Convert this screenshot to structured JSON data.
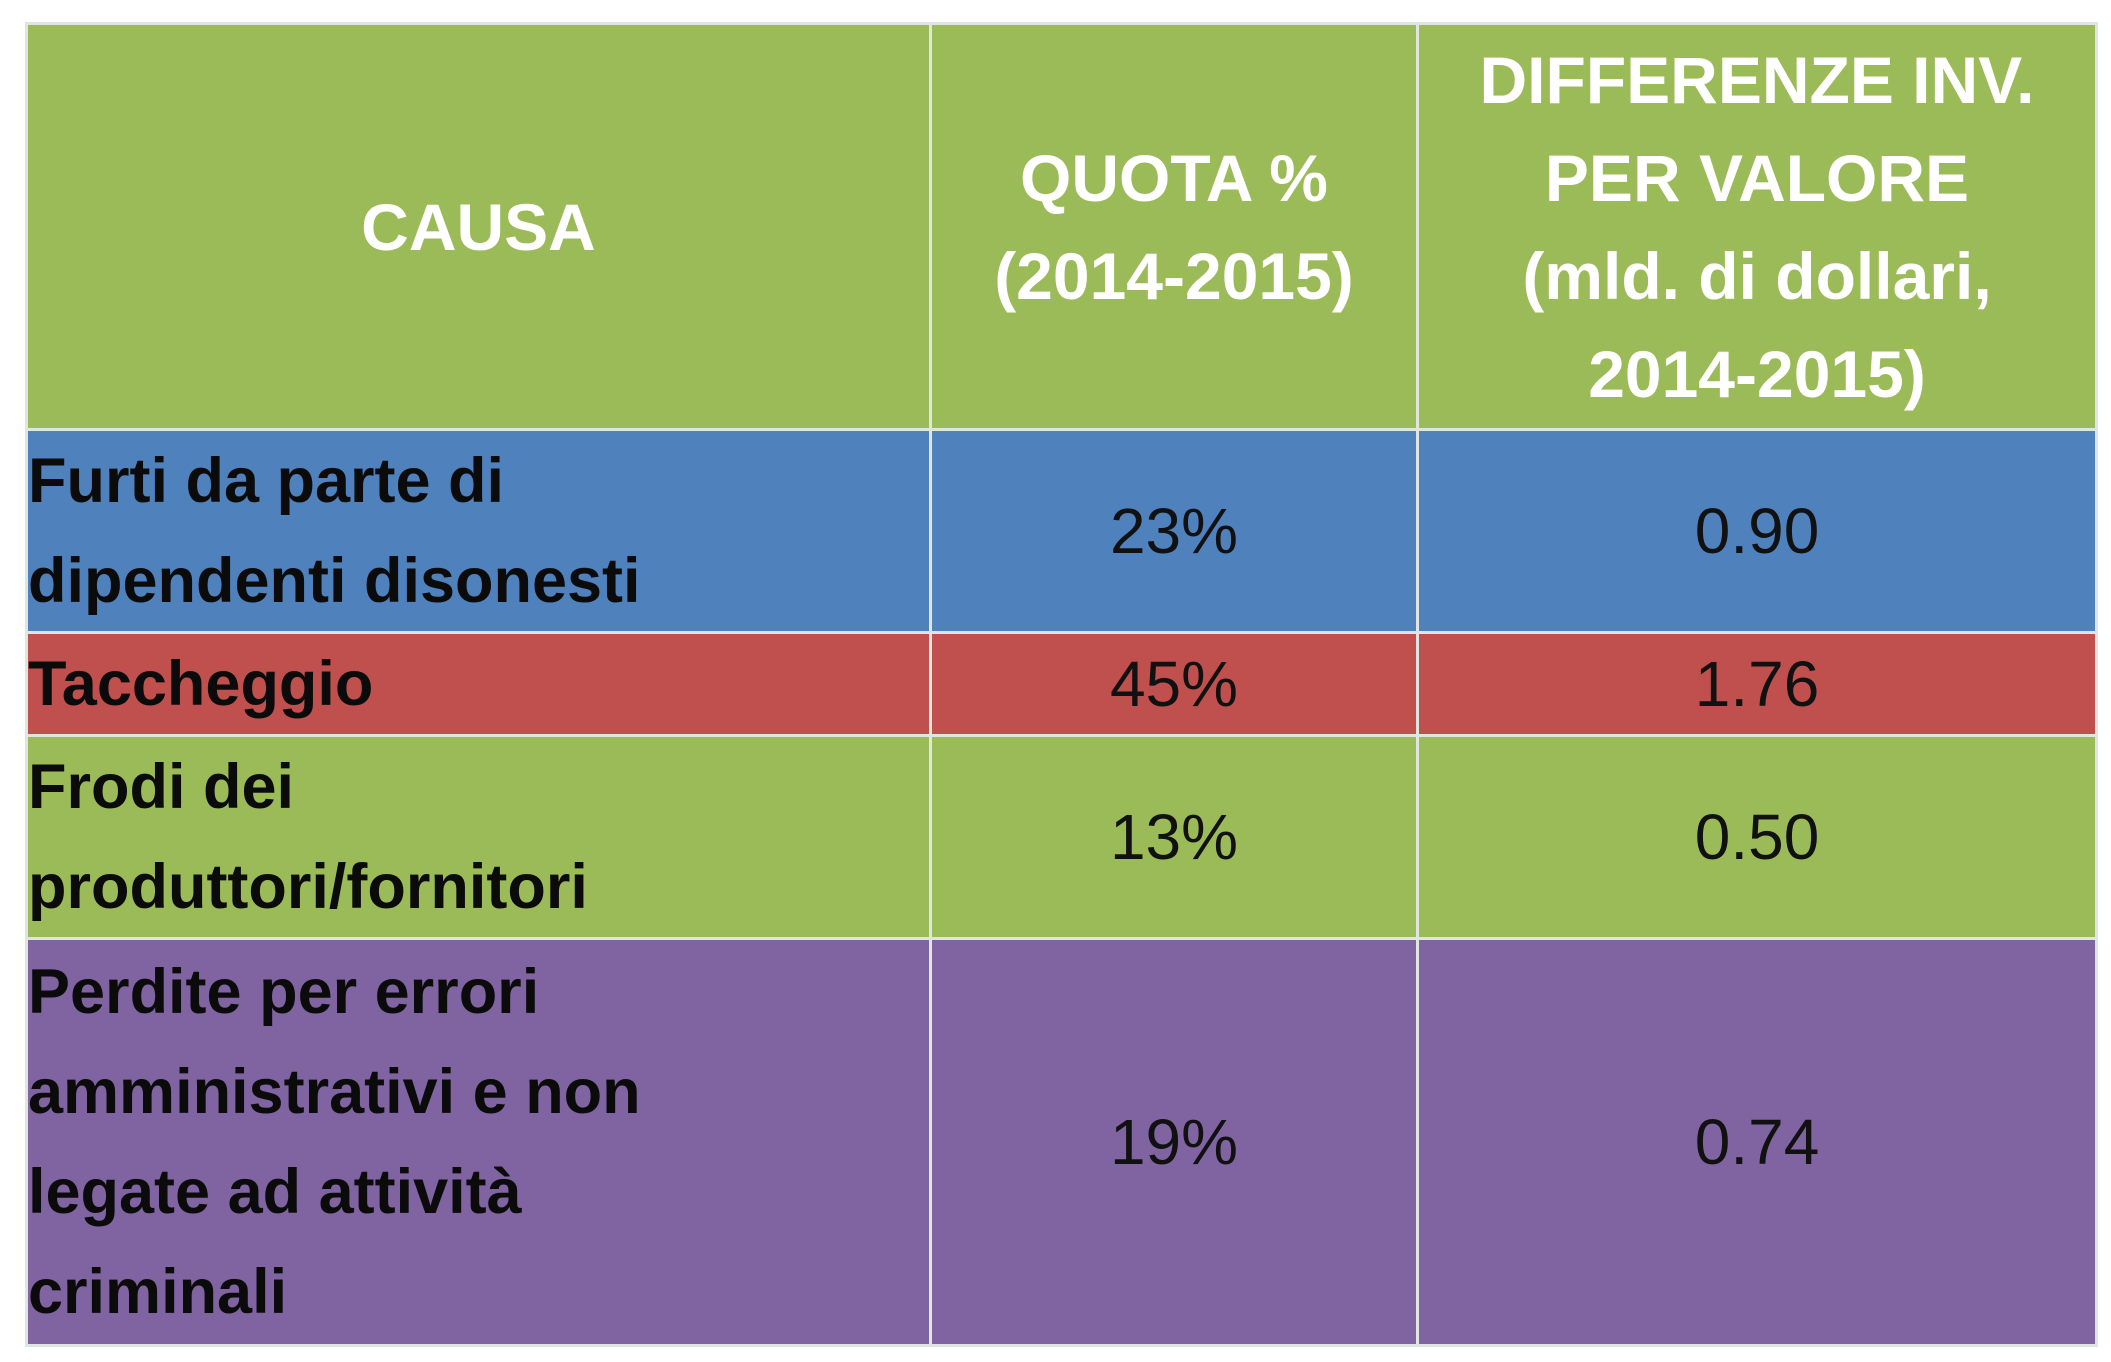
{
  "table": {
    "headers": {
      "causa": "CAUSA",
      "quota_line1": "QUOTA %",
      "quota_line2": "(2014-2015)",
      "diff_line1": "DIFFERENZE INV.",
      "diff_line2": "PER VALORE",
      "diff_line3": "(mld. di dollari,",
      "diff_line4": "2014-2015)"
    },
    "rows": [
      {
        "cause_lines": [
          "Furti da parte di",
          "dipendenti disonesti"
        ],
        "quota": "23%",
        "diff": "0.90",
        "color": "#4f81bd"
      },
      {
        "cause_lines": [
          "Taccheggio"
        ],
        "quota": "45%",
        "diff": "1.76",
        "color": "#c0504d"
      },
      {
        "cause_lines": [
          "Frodi dei",
          "produttori/fornitori"
        ],
        "quota": "13%",
        "diff": "0.50",
        "color": "#9bbb59"
      },
      {
        "cause_lines": [
          "Perdite per errori",
          "amministrativi e non",
          "legate ad attività",
          "criminali"
        ],
        "quota": "19%",
        "diff": "0.74",
        "color": "#8064a2"
      }
    ]
  },
  "chart_data": {
    "type": "table",
    "columns": [
      "CAUSA",
      "QUOTA % (2014-2015)",
      "DIFFERENZE INV. PER VALORE (mld. di dollari, 2014-2015)"
    ],
    "rows": [
      [
        "Furti da parte di dipendenti disonesti",
        23,
        0.9
      ],
      [
        "Taccheggio",
        45,
        1.76
      ],
      [
        "Frodi dei produttori/fornitori",
        13,
        0.5
      ],
      [
        "Perdite per errori amministrativi e non legate ad attività criminali",
        19,
        0.74
      ]
    ],
    "header_color": "#9bbb59",
    "row_colors": [
      "#4f81bd",
      "#c0504d",
      "#9bbb59",
      "#8064a2"
    ]
  }
}
